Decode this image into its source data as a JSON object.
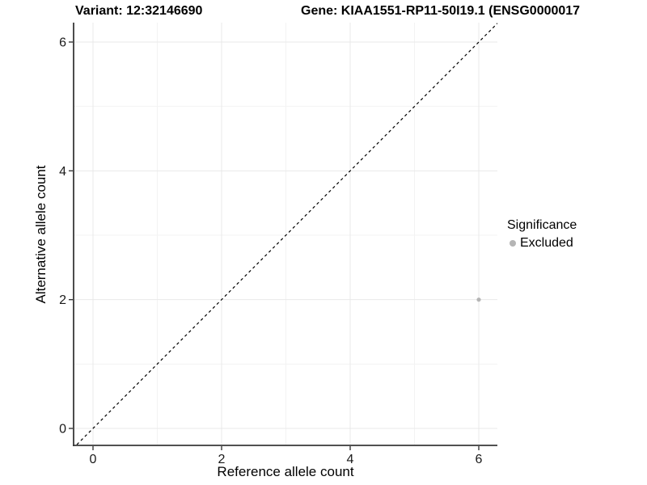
{
  "titles": {
    "variant": "Variant: 12:32146690",
    "gene": "Gene: KIAA1551-RP11-50I19.1 (ENSG0000017"
  },
  "chart_data": {
    "type": "scatter",
    "title_left": "Variant: 12:32146690",
    "title_right": "Gene: KIAA1551-RP11-50I19.1 (ENSG0000017",
    "xlabel": "Reference allele count",
    "ylabel": "Alternative allele count",
    "xlim": [
      -0.3,
      6.3
    ],
    "ylim": [
      -0.27,
      6.3
    ],
    "x_ticks": [
      0,
      2,
      4,
      6
    ],
    "y_ticks": [
      0,
      2,
      4,
      6
    ],
    "x_minor_ticks": [
      1,
      3,
      5
    ],
    "y_minor_ticks": [
      1,
      3,
      5
    ],
    "grid": true,
    "points": [
      {
        "x": 6,
        "y": 2,
        "series": "Excluded"
      }
    ],
    "reference_line": {
      "type": "identity",
      "equation": "y = x",
      "style": "dashed",
      "color": "#000000"
    },
    "legend": {
      "title": "Significance",
      "position": "right",
      "items": [
        {
          "label": "Excluded",
          "color": "#b5b5b5"
        }
      ]
    }
  },
  "colors": {
    "background": "#ffffff",
    "grid_major": "#e9e9e9",
    "grid_minor": "#f3f3f3",
    "axis_line": "#383838",
    "tick": "#383838",
    "tick_label": "#1a1a1a",
    "point": "#b5b5b5"
  }
}
